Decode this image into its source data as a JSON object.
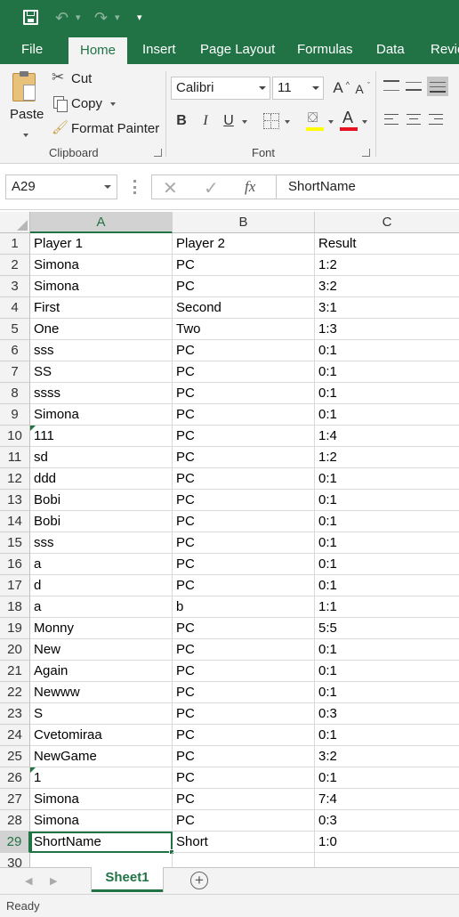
{
  "qat": {
    "redo_chevron": "▾",
    "customize": "▾"
  },
  "tabs": [
    {
      "label": "File"
    },
    {
      "label": "Home"
    },
    {
      "label": "Insert"
    },
    {
      "label": "Page Layout"
    },
    {
      "label": "Formulas"
    },
    {
      "label": "Data"
    },
    {
      "label": "Revie"
    }
  ],
  "clipboard": {
    "paste_label": "Paste",
    "cut_label": "Cut",
    "copy_label": "Copy",
    "format_painter_label": "Format Painter",
    "group_label": "Clipboard"
  },
  "font": {
    "family": "Calibri",
    "size": "11",
    "grow_label": "A",
    "shrink_label": "A",
    "bold_label": "B",
    "italic_label": "I",
    "underline_label": "U",
    "font_color_label": "A",
    "group_label": "Font"
  },
  "formula_bar": {
    "name_box": "A29",
    "fx_label": "fx",
    "value": "ShortName"
  },
  "columns": [
    "A",
    "B",
    "C"
  ],
  "rows": [
    {
      "n": "1",
      "a": "Player 1",
      "b": "Player 2",
      "c": "Result"
    },
    {
      "n": "2",
      "a": "Simona",
      "b": "PC",
      "c": "1:2"
    },
    {
      "n": "3",
      "a": "Simona",
      "b": "PC",
      "c": "3:2"
    },
    {
      "n": "4",
      "a": "First",
      "b": "Second",
      "c": "3:1"
    },
    {
      "n": "5",
      "a": "One",
      "b": "Two",
      "c": "1:3"
    },
    {
      "n": "6",
      "a": "sss",
      "b": "PC",
      "c": "0:1"
    },
    {
      "n": "7",
      "a": "SS",
      "b": "PC",
      "c": "0:1"
    },
    {
      "n": "8",
      "a": "ssss",
      "b": "PC",
      "c": "0:1"
    },
    {
      "n": "9",
      "a": "Simona",
      "b": "PC",
      "c": "0:1"
    },
    {
      "n": "10",
      "a": "111",
      "b": "PC",
      "c": "1:4"
    },
    {
      "n": "11",
      "a": "sd",
      "b": "PC",
      "c": "1:2"
    },
    {
      "n": "12",
      "a": "ddd",
      "b": "PC",
      "c": "0:1"
    },
    {
      "n": "13",
      "a": "Bobi",
      "b": "PC",
      "c": "0:1"
    },
    {
      "n": "14",
      "a": "Bobi",
      "b": "PC",
      "c": "0:1"
    },
    {
      "n": "15",
      "a": "sss",
      "b": "PC",
      "c": "0:1"
    },
    {
      "n": "16",
      "a": "a",
      "b": "PC",
      "c": "0:1"
    },
    {
      "n": "17",
      "a": "d",
      "b": "PC",
      "c": "0:1"
    },
    {
      "n": "18",
      "a": "a",
      "b": "b",
      "c": "1:1"
    },
    {
      "n": "19",
      "a": "Monny",
      "b": "PC",
      "c": "5:5"
    },
    {
      "n": "20",
      "a": "New",
      "b": "PC",
      "c": "0:1"
    },
    {
      "n": "21",
      "a": "Again",
      "b": "PC",
      "c": "0:1"
    },
    {
      "n": "22",
      "a": "Newww",
      "b": "PC",
      "c": "0:1"
    },
    {
      "n": "23",
      "a": "S",
      "b": "PC",
      "c": "0:3"
    },
    {
      "n": "24",
      "a": "Cvetomiraa",
      "b": "PC",
      "c": "0:1"
    },
    {
      "n": "25",
      "a": "NewGame",
      "b": "PC",
      "c": "3:2"
    },
    {
      "n": "26",
      "a": "1",
      "b": "PC",
      "c": "0:1"
    },
    {
      "n": "27",
      "a": "Simona",
      "b": "PC",
      "c": "7:4"
    },
    {
      "n": "28",
      "a": "Simona",
      "b": "PC",
      "c": "0:3"
    },
    {
      "n": "29",
      "a": "ShortName",
      "b": "Short",
      "c": "1:0"
    },
    {
      "n": "30",
      "a": "",
      "b": "",
      "c": ""
    }
  ],
  "sheets": {
    "active": "Sheet1",
    "add_label": "+"
  },
  "status": {
    "text": "Ready"
  },
  "colors": {
    "accent": "#217346",
    "font_color_bar": "#e81123",
    "highlight_bar": "#ffff00"
  }
}
